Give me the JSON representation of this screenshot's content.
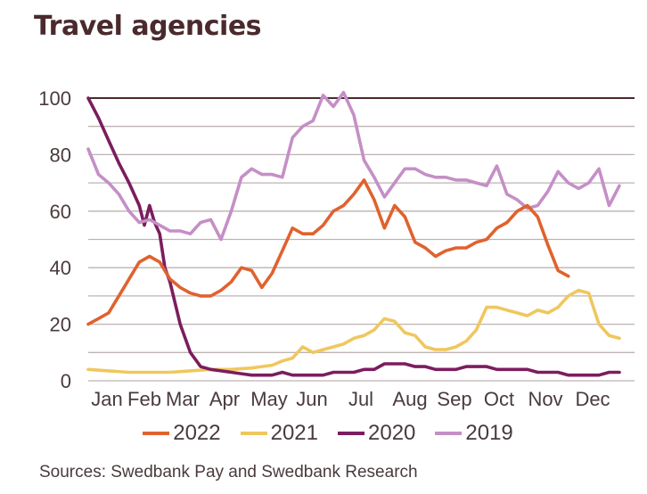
{
  "title": "Travel agencies",
  "source": "Sources: Swedbank Pay and Swedbank Research",
  "chart_data": {
    "type": "line",
    "title": "Travel agencies",
    "xlabel": "",
    "ylabel": "",
    "ylim": [
      0,
      100
    ],
    "xlim": [
      0,
      52
    ],
    "x_unit": "week of year",
    "yticks": [
      0,
      20,
      40,
      60,
      80,
      100
    ],
    "gridlines": [
      0,
      10,
      20,
      30,
      40,
      50,
      60,
      70,
      80,
      90,
      100
    ],
    "grid": true,
    "reference_line": 100,
    "categories": [
      "Jan",
      "Feb",
      "Mar",
      "Apr",
      "May",
      "Jun",
      "Jul",
      "Aug",
      "Sep",
      "Oct",
      "Nov",
      "Dec"
    ],
    "legend_position": "bottom",
    "series": [
      {
        "name": "2022",
        "color": "#e0622e",
        "x": [
          0,
          1,
          2,
          3,
          4,
          5,
          6,
          7,
          8,
          9,
          10,
          11,
          12,
          13,
          14,
          15,
          16,
          17,
          18,
          19,
          20,
          21,
          22,
          23,
          24,
          25,
          26,
          27,
          28,
          29,
          30,
          31,
          32,
          33,
          34,
          35,
          36,
          37,
          38,
          39,
          40,
          41
        ],
        "values": [
          20,
          22,
          24,
          30,
          36,
          42,
          44,
          42,
          36,
          33,
          31,
          30,
          30,
          32,
          35,
          40,
          39,
          33,
          38,
          46,
          54,
          52,
          52,
          55,
          60,
          62,
          66,
          71,
          64,
          54,
          62,
          58,
          49,
          47,
          44,
          46,
          47,
          47,
          49,
          50,
          54,
          56
        ]
      },
      {
        "name": "2022-tail",
        "color": "#e0622e",
        "x": [
          41,
          42,
          43,
          44,
          45,
          46,
          47
        ],
        "values": [
          56,
          60,
          62,
          58,
          48,
          39,
          37
        ]
      },
      {
        "name": "2021",
        "color": "#efc75e",
        "x": [
          0,
          2,
          4,
          6,
          8,
          10,
          12,
          14,
          16,
          17,
          18,
          19,
          20,
          21,
          22,
          23,
          24,
          25,
          26,
          27,
          28,
          29,
          30,
          31,
          32,
          33,
          34,
          35,
          36,
          37,
          38,
          39,
          40,
          41,
          42,
          43,
          44,
          45,
          46,
          47,
          48,
          49,
          50,
          51,
          52
        ],
        "values": [
          4,
          3.5,
          3,
          3,
          3,
          3.5,
          4,
          4,
          4.5,
          5,
          5.5,
          7,
          8,
          12,
          10,
          11,
          12,
          13,
          15,
          16,
          18,
          22,
          21,
          17,
          16,
          12,
          11,
          11,
          12,
          14,
          18,
          26,
          26,
          25,
          24,
          23,
          25,
          24,
          26,
          30,
          32,
          31,
          20,
          16,
          15
        ]
      },
      {
        "name": "2020",
        "color": "#7b1d5e",
        "x": [
          0,
          1,
          2,
          3,
          4,
          5,
          5.5,
          6,
          6.5,
          7,
          7.5,
          8,
          9,
          10,
          11,
          12,
          13,
          14,
          15,
          16,
          17,
          18,
          19,
          20,
          21,
          22,
          23,
          24,
          25,
          26,
          27,
          28,
          29,
          30,
          31,
          32,
          33,
          34,
          35,
          36,
          37,
          38,
          39,
          40,
          41,
          42,
          43,
          44,
          45,
          46,
          47,
          48,
          49,
          50,
          51,
          52
        ],
        "values": [
          100,
          93,
          85,
          77,
          70,
          62,
          55,
          62,
          56,
          52,
          40,
          35,
          20,
          10,
          5,
          4,
          3.5,
          3,
          2.5,
          2,
          2,
          2,
          3,
          2,
          2,
          2,
          2,
          3,
          3,
          3,
          4,
          4,
          6,
          6,
          6,
          5,
          5,
          4,
          4,
          4,
          5,
          5,
          5,
          4,
          4,
          4,
          4,
          3,
          3,
          3,
          2,
          2,
          2,
          2,
          3,
          3
        ]
      },
      {
        "name": "2019",
        "color": "#c58fc6",
        "x": [
          0,
          1,
          2,
          3,
          4,
          5,
          6,
          7,
          8,
          9,
          10,
          11,
          12,
          13,
          14,
          15,
          16,
          17,
          18,
          19,
          20,
          21,
          22,
          23,
          24,
          25,
          26,
          27,
          28,
          29,
          30,
          31,
          32,
          33,
          34,
          35,
          36,
          37,
          38,
          39,
          40,
          41,
          42,
          43,
          44,
          45,
          46,
          47,
          48,
          49,
          50,
          51,
          52
        ],
        "values": [
          82,
          73,
          70,
          66,
          60,
          56,
          57,
          55,
          53,
          53,
          52,
          56,
          57,
          50,
          60,
          72,
          75,
          73,
          73,
          72,
          86,
          90,
          92,
          101,
          97,
          102,
          94,
          78,
          72,
          65,
          70,
          75,
          75,
          73,
          72,
          72,
          71,
          71,
          70,
          69,
          76,
          66,
          64,
          61,
          62,
          67,
          74,
          70,
          68,
          70,
          75,
          62,
          69
        ]
      }
    ]
  }
}
